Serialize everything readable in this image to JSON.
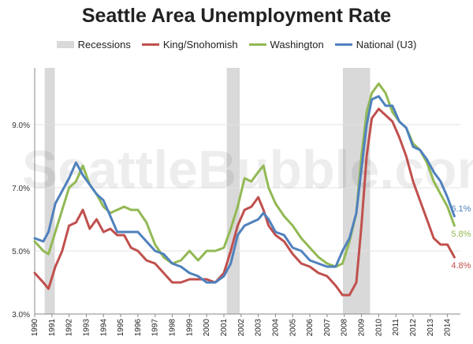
{
  "chart_data": {
    "type": "line",
    "title": "Seattle Area Unemployment Rate",
    "watermark": "SeattleBubble.com",
    "xlabel": "",
    "ylabel": "",
    "xlim": [
      1990,
      2014.75
    ],
    "ylim": [
      3.0,
      10.8
    ],
    "yticks": [
      3.0,
      5.0,
      7.0,
      9.0
    ],
    "ytick_labels": [
      "3.0%",
      "5.0%",
      "7.0%",
      "9.0%"
    ],
    "xticks": [
      "1990",
      "1991",
      "1992",
      "1993",
      "1994",
      "1995",
      "1996",
      "1997",
      "1998",
      "1999",
      "2000",
      "2001",
      "2002",
      "2003",
      "2004",
      "2005",
      "2006",
      "2007",
      "2008",
      "2009",
      "2010",
      "2011",
      "2012",
      "2013",
      "2014"
    ],
    "grid": "horizontal",
    "legend_position": "top",
    "recessions": {
      "name": "Recessions",
      "color": "#d9d9d9",
      "periods": [
        [
          1990.58,
          1991.17
        ],
        [
          2001.17,
          2001.92
        ],
        [
          2007.92,
          2009.5
        ]
      ]
    },
    "series": [
      {
        "name": "King/Snohomish",
        "color": "#c0504d",
        "end_label": "4.8%",
        "x": [
          1990.0,
          1990.5,
          1990.8,
          1991.2,
          1991.6,
          1992.0,
          1992.4,
          1992.8,
          1993.2,
          1993.6,
          1994.0,
          1994.4,
          1994.8,
          1995.2,
          1995.6,
          1996.0,
          1996.5,
          1997.0,
          1997.5,
          1998.0,
          1998.5,
          1999.0,
          1999.5,
          2000.0,
          2000.5,
          2001.0,
          2001.4,
          2001.8,
          2002.2,
          2002.6,
          2003.0,
          2003.3,
          2003.6,
          2004.0,
          2004.5,
          2005.0,
          2005.5,
          2006.0,
          2006.5,
          2007.0,
          2007.5,
          2007.9,
          2008.3,
          2008.7,
          2009.0,
          2009.3,
          2009.6,
          2010.0,
          2010.4,
          2010.8,
          2011.2,
          2011.6,
          2012.0,
          2012.4,
          2012.8,
          2013.2,
          2013.6,
          2014.0,
          2014.4
        ],
        "values": [
          4.3,
          4.0,
          3.8,
          4.5,
          5.0,
          5.8,
          5.9,
          6.3,
          5.7,
          6.0,
          5.6,
          5.7,
          5.5,
          5.5,
          5.1,
          5.0,
          4.7,
          4.6,
          4.3,
          4.0,
          4.0,
          4.1,
          4.1,
          4.1,
          4.0,
          4.3,
          5.0,
          5.8,
          6.3,
          6.4,
          6.7,
          6.3,
          5.8,
          5.5,
          5.3,
          4.9,
          4.6,
          4.5,
          4.3,
          4.2,
          3.9,
          3.6,
          3.6,
          4.0,
          5.8,
          8.0,
          9.2,
          9.5,
          9.3,
          9.1,
          8.6,
          8.0,
          7.2,
          6.6,
          6.0,
          5.4,
          5.2,
          5.2,
          4.8
        ]
      },
      {
        "name": "Washington",
        "color": "#92b954",
        "end_label": "5.8%",
        "x": [
          1990.0,
          1990.5,
          1990.8,
          1991.2,
          1991.6,
          1992.0,
          1992.4,
          1992.8,
          1993.2,
          1993.6,
          1994.0,
          1994.4,
          1994.8,
          1995.2,
          1995.6,
          1996.0,
          1996.5,
          1997.0,
          1997.5,
          1998.0,
          1998.5,
          1999.0,
          1999.5,
          2000.0,
          2000.5,
          2001.0,
          2001.4,
          2001.8,
          2002.2,
          2002.6,
          2003.0,
          2003.3,
          2003.6,
          2004.0,
          2004.5,
          2005.0,
          2005.5,
          2006.0,
          2006.5,
          2007.0,
          2007.5,
          2007.9,
          2008.3,
          2008.7,
          2009.0,
          2009.3,
          2009.6,
          2010.0,
          2010.4,
          2010.8,
          2011.2,
          2011.6,
          2012.0,
          2012.4,
          2012.8,
          2013.2,
          2013.6,
          2014.0,
          2014.4
        ],
        "values": [
          5.3,
          5.0,
          4.9,
          5.6,
          6.3,
          7.0,
          7.2,
          7.7,
          7.1,
          6.8,
          6.4,
          6.2,
          6.3,
          6.4,
          6.3,
          6.3,
          5.9,
          5.2,
          4.8,
          4.6,
          4.7,
          5.0,
          4.7,
          5.0,
          5.0,
          5.1,
          5.7,
          6.4,
          7.3,
          7.2,
          7.5,
          7.7,
          7.0,
          6.5,
          6.1,
          5.8,
          5.4,
          5.1,
          4.8,
          4.6,
          4.5,
          4.6,
          5.3,
          6.2,
          8.0,
          9.4,
          10.0,
          10.3,
          10.0,
          9.4,
          9.1,
          8.9,
          8.4,
          8.2,
          7.8,
          7.2,
          6.8,
          6.4,
          5.8
        ]
      },
      {
        "name": "National (U3)",
        "color": "#4f81bd",
        "end_label": "6.1%",
        "x": [
          1990.0,
          1990.5,
          1990.8,
          1991.2,
          1991.6,
          1992.0,
          1992.4,
          1992.8,
          1993.2,
          1993.6,
          1994.0,
          1994.4,
          1994.8,
          1995.2,
          1995.6,
          1996.0,
          1996.5,
          1997.0,
          1997.5,
          1998.0,
          1998.5,
          1999.0,
          1999.5,
          2000.0,
          2000.5,
          2001.0,
          2001.4,
          2001.8,
          2002.2,
          2002.6,
          2003.0,
          2003.3,
          2003.6,
          2004.0,
          2004.5,
          2005.0,
          2005.5,
          2006.0,
          2006.5,
          2007.0,
          2007.5,
          2007.9,
          2008.3,
          2008.7,
          2009.0,
          2009.3,
          2009.6,
          2010.0,
          2010.4,
          2010.8,
          2011.2,
          2011.6,
          2012.0,
          2012.4,
          2012.8,
          2013.2,
          2013.6,
          2014.0,
          2014.4
        ],
        "values": [
          5.4,
          5.3,
          5.6,
          6.5,
          6.9,
          7.3,
          7.8,
          7.4,
          7.1,
          6.8,
          6.6,
          6.1,
          5.6,
          5.6,
          5.6,
          5.6,
          5.3,
          5.0,
          4.9,
          4.6,
          4.5,
          4.3,
          4.2,
          4.0,
          4.0,
          4.2,
          4.6,
          5.5,
          5.8,
          5.9,
          6.0,
          6.2,
          6.0,
          5.6,
          5.5,
          5.1,
          5.0,
          4.7,
          4.6,
          4.5,
          4.5,
          5.0,
          5.4,
          6.2,
          7.6,
          9.0,
          9.8,
          9.9,
          9.6,
          9.6,
          9.1,
          8.9,
          8.3,
          8.2,
          7.9,
          7.5,
          7.2,
          6.7,
          6.1
        ]
      }
    ]
  }
}
